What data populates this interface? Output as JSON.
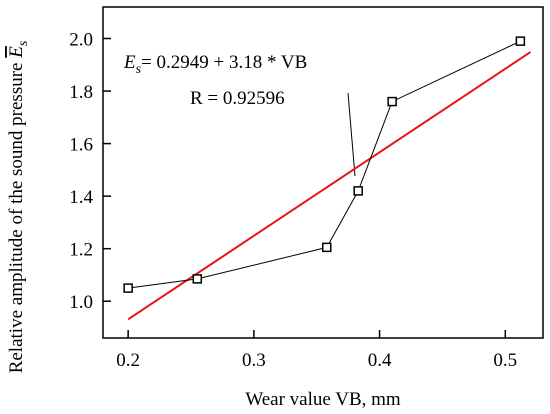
{
  "chart_data": {
    "type": "scatter",
    "title": "",
    "xlabel": "Wear value VB, mm",
    "ylabel": "Relative amplitude of the sound pressure",
    "ylabel_symbol": "E",
    "ylabel_symbol_sub": "s",
    "xlim": [
      0.18,
      0.53
    ],
    "ylim": [
      0.86,
      2.12
    ],
    "xticks": [
      0.2,
      0.3,
      0.4,
      0.5
    ],
    "xtick_labels": [
      "0.2",
      "0.3",
      "0.4",
      "0.5"
    ],
    "yticks": [
      1.0,
      1.2,
      1.4,
      1.6,
      1.8,
      2.0
    ],
    "ytick_labels": [
      "1.0",
      "1.2",
      "1.4",
      "1.6",
      "1.8",
      "2.0"
    ],
    "grid": false,
    "legend": false,
    "series": [
      {
        "x": [
          0.2,
          0.255,
          0.358,
          0.383,
          0.41,
          0.512
        ],
        "y": [
          1.05,
          1.085,
          1.205,
          1.42,
          1.76,
          1.99
        ],
        "color": "#000000",
        "marker": "square"
      }
    ],
    "fit": {
      "x": [
        0.2,
        0.52
      ],
      "y": [
        0.931,
        1.9485
      ],
      "color": "#ee1111",
      "equation_symbol": "E",
      "equation_symbol_sub": "s",
      "equation_rest": "= 0.2949 + 3.18 * VB",
      "r_text": "R = 0.92596"
    }
  }
}
